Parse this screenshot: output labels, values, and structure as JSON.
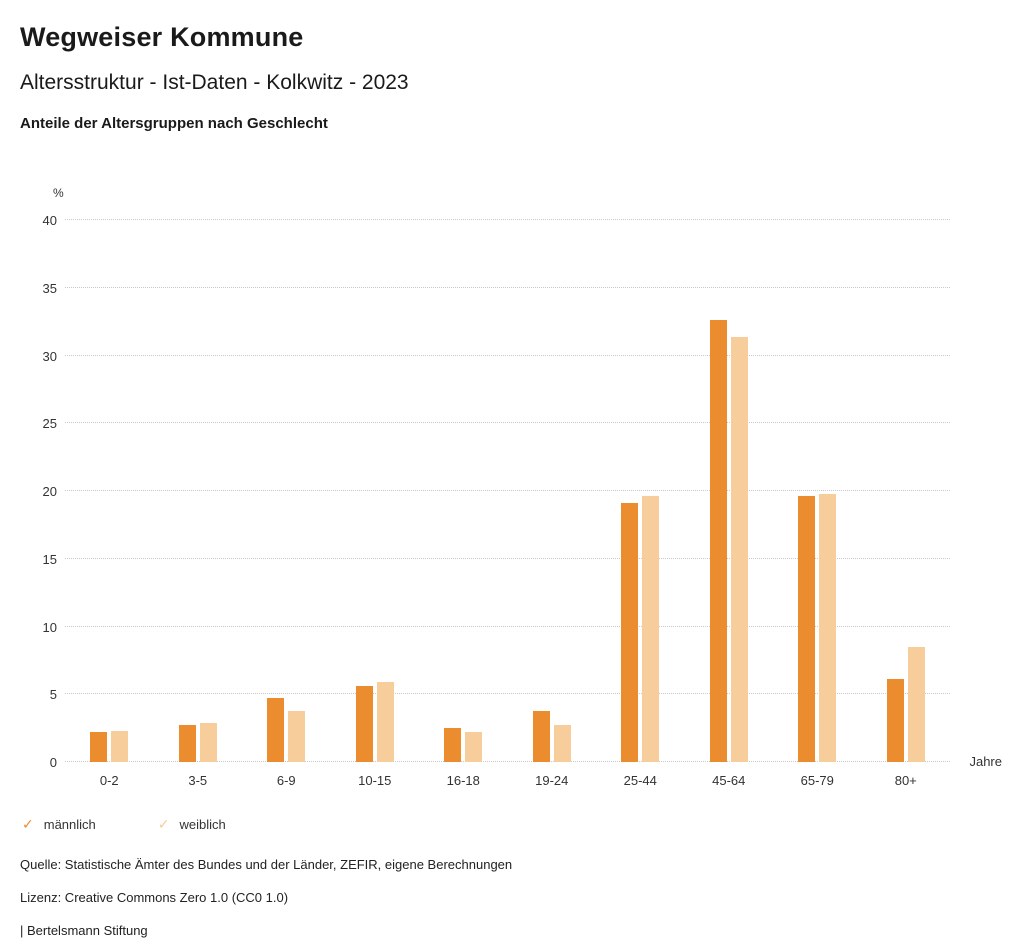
{
  "header": {
    "title": "Wegweiser Kommune",
    "subtitle": "Altersstruktur - Ist-Daten - Kolkwitz - 2023",
    "caption": "Anteile der Altersgruppen nach Geschlecht"
  },
  "chart_data": {
    "type": "bar",
    "categories": [
      "0-2",
      "3-5",
      "6-9",
      "10-15",
      "16-18",
      "19-24",
      "25-44",
      "45-64",
      "65-79",
      "80+"
    ],
    "series": [
      {
        "name": "männlich",
        "color": "#EB8C2F",
        "values": [
          2.2,
          2.7,
          4.7,
          5.6,
          2.5,
          3.8,
          19.1,
          32.6,
          19.6,
          6.1
        ]
      },
      {
        "name": "weiblich",
        "color": "#F6CD9B",
        "values": [
          2.3,
          2.9,
          3.8,
          5.9,
          2.2,
          2.7,
          19.6,
          31.4,
          19.8,
          8.5
        ]
      }
    ],
    "title": "Anteile der Altersgruppen nach Geschlecht",
    "xlabel": "Jahre",
    "ylabel": "%",
    "ylim": [
      0,
      40
    ],
    "ytick_step": 5,
    "grid": "horizontal-dotted",
    "legend_position": "bottom"
  },
  "legend": {
    "check_icon": "✓",
    "items": [
      {
        "label": "männlich",
        "color": "#EB8C2F"
      },
      {
        "label": "weiblich",
        "color": "#F6CD9B"
      }
    ]
  },
  "footer": {
    "source": "Quelle: Statistische Ämter des Bundes und der Länder, ZEFIR, eigene Berechnungen",
    "license": "Lizenz: Creative Commons Zero 1.0 (CC0 1.0)",
    "brand": "| Bertelsmann Stiftung"
  }
}
